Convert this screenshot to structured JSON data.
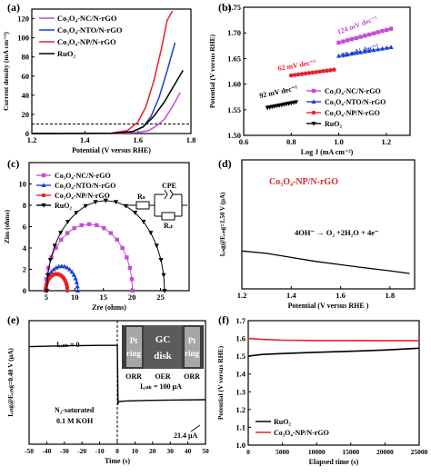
{
  "panels": [
    {
      "id": "a",
      "letter": "(a)",
      "type": "line",
      "xlabel": "Potential (V versus RHE)",
      "ylabel": "Current density (mA cm⁻²)",
      "xlim": [
        1.2,
        1.8
      ],
      "ylim": [
        0,
        130
      ],
      "xticks": [
        1.2,
        1.4,
        1.6,
        1.8
      ],
      "xtick_labels": [
        "1.2",
        "1.4",
        "1.6",
        "1.8"
      ],
      "yticks": [
        0,
        20,
        40,
        60,
        80,
        100,
        120
      ],
      "ytick_labels": [
        "0",
        "20",
        "40",
        "60",
        "80",
        "100",
        "120"
      ],
      "legend": "top-left",
      "hline": {
        "y": 10,
        "style": "dashed"
      },
      "series": [
        {
          "name": "Co₃O₄-NC/N-rGO",
          "color": "#c64bd4",
          "x": [
            1.2,
            1.5,
            1.6,
            1.64,
            1.67,
            1.7,
            1.73,
            1.76
          ],
          "y": [
            0,
            0.2,
            1,
            3,
            8,
            15,
            28,
            43
          ]
        },
        {
          "name": "Co₃O₄-NTO/N-rGO",
          "color": "#1a3fd6",
          "x": [
            1.2,
            1.5,
            1.58,
            1.62,
            1.65,
            1.68,
            1.71,
            1.74
          ],
          "y": [
            0,
            0.3,
            2,
            7,
            18,
            38,
            65,
            95
          ]
        },
        {
          "name": "Co₃O₄-NP/N-rGO",
          "color": "#e8202a",
          "x": [
            1.2,
            1.5,
            1.56,
            1.6,
            1.63,
            1.66,
            1.69,
            1.71,
            1.73
          ],
          "y": [
            0,
            0.5,
            3,
            12,
            28,
            55,
            90,
            118,
            128
          ]
        },
        {
          "name": "RuO₂",
          "color": "#000000",
          "x": [
            1.2,
            1.5,
            1.58,
            1.62,
            1.66,
            1.7,
            1.74,
            1.77
          ],
          "y": [
            0,
            0.3,
            2,
            7,
            18,
            33,
            52,
            66
          ]
        }
      ]
    },
    {
      "id": "b",
      "letter": "(b)",
      "type": "scatter",
      "xlabel": "Log J (mA cm⁻²)",
      "ylabel": "Potential (V versus RHE)",
      "xlim": [
        0.6,
        1.3
      ],
      "ylim": [
        1.5,
        1.75
      ],
      "xticks": [
        0.6,
        0.8,
        1.0,
        1.2
      ],
      "xtick_labels": [
        "0.6",
        "0.8",
        "1.0",
        "1.2"
      ],
      "yticks": [
        1.5,
        1.55,
        1.6,
        1.65,
        1.7,
        1.75
      ],
      "ytick_labels": [
        "1.50",
        "1.55",
        "1.60",
        "1.65",
        "1.70",
        "1.75"
      ],
      "legend": "bottom-right",
      "series": [
        {
          "name": "Co₃O₄-NC/N-rGO",
          "color": "#c64bd4",
          "x": [
            1.0,
            1.22
          ],
          "y": [
            1.681,
            1.708
          ],
          "slope_label": "124 mV dec⁻¹"
        },
        {
          "name": "Co₃O₄-NTO/N-rGO",
          "color": "#1a3fd6",
          "x": [
            1.0,
            1.22
          ],
          "y": [
            1.655,
            1.672
          ],
          "slope_label": "78 mV dec⁻¹"
        },
        {
          "name": "Co₃O₄-NP/N-rGO",
          "color": "#e8202a",
          "x": [
            0.8,
            0.98
          ],
          "y": [
            1.617,
            1.628
          ],
          "slope_label": "62 mV dec⁻¹"
        },
        {
          "name": "RuO₂",
          "color": "#000000",
          "x": [
            0.7,
            0.82
          ],
          "y": [
            1.554,
            1.565
          ],
          "slope_label": "92 mV dec⁻¹"
        }
      ]
    },
    {
      "id": "c",
      "letter": "(c)",
      "type": "scatter",
      "xlabel": "Zre (ohms)",
      "ylabel": "Zim (ohms)",
      "xlim": [
        2,
        30
      ],
      "ylim": [
        0,
        12
      ],
      "xticks": [
        5,
        10,
        15,
        20,
        25
      ],
      "xtick_labels": [
        "5",
        "10",
        "15",
        "20",
        "25"
      ],
      "yticks": [
        0,
        2,
        4,
        6,
        8,
        10
      ],
      "ytick_labels": [
        "0",
        "2",
        "4",
        "6",
        "8",
        "10"
      ],
      "legend": "top-left",
      "circuit_labels": {
        "rs": "Rₛ",
        "cpe": "CPE",
        "rct": "Rₑₜ"
      },
      "series": [
        {
          "name": "Co₃O₄-NC/N-rGO",
          "color": "#c64bd4",
          "center": 12.5,
          "radius": 7.6,
          "start": 4.9
        },
        {
          "name": "Co₃O₄-NTO/N-rGO",
          "color": "#1a3fd6",
          "center": 7.7,
          "radius": 2.8,
          "start": 4.9
        },
        {
          "name": "Co₃O₄-NP/N-rGO",
          "color": "#e8202a",
          "center": 6.8,
          "radius": 1.9,
          "start": 4.9
        },
        {
          "name": "RuO₂",
          "color": "#000000",
          "center": 15.4,
          "radius": 10.3,
          "start": 5.1
        }
      ]
    },
    {
      "id": "d",
      "letter": "(d)",
      "type": "line",
      "xlabel": "Potential (V versus RHE )",
      "ylabel": "Iᵣᵢₙg@Eᵣᵢₙg=1.50 V (μA)",
      "xlim": [
        1.2,
        1.9
      ],
      "ylim": [
        0,
        8
      ],
      "xticks": [
        1.2,
        1.4,
        1.6,
        1.8
      ],
      "xtick_labels": [
        "1.2",
        "1.4",
        "1.6",
        "1.8"
      ],
      "yticks": [],
      "ytick_labels": [],
      "series_label": "Co₃O₄-NP/N-rGO",
      "reaction": "4OH⁻ → O₂ +2H₂O + 4e⁻",
      "series": [
        {
          "name": "Co₃O₄-NP/N-rGO",
          "color": "#000000",
          "x": [
            1.2,
            1.3,
            1.4,
            1.5,
            1.6,
            1.7,
            1.8,
            1.88
          ],
          "y": [
            2.35,
            2.2,
            1.95,
            1.7,
            1.5,
            1.3,
            1.12,
            0.95
          ]
        }
      ]
    },
    {
      "id": "e",
      "letter": "(e)",
      "type": "line",
      "xlabel": "Time (s)",
      "ylabel": "Iᵣᵢₙg@Eᵣᵢₙg=0.40 V (μA)",
      "xlim": [
        -50,
        50
      ],
      "ylim": [
        0,
        10
      ],
      "xticks": [
        -50,
        -40,
        -30,
        -20,
        -10,
        0,
        10,
        20,
        30,
        40,
        50
      ],
      "xtick_labels": [
        "-50",
        "-40",
        "-30",
        "-20",
        "-10",
        "0",
        "10",
        "20",
        "30",
        "40",
        "50"
      ],
      "idisk_zero": "Iₑᵢₛₖ = 0",
      "idisk_100": "Iₑᵢₛₖ = 100 μA",
      "current_value": "21.4 μA",
      "conditions": [
        "N₂-saturated",
        "0.1 M KOH"
      ],
      "electrode": {
        "ring": [
          "Pt",
          "ring"
        ],
        "disk": [
          "GC",
          "disk"
        ],
        "labels": [
          "ORR",
          "OER",
          "ORR"
        ]
      },
      "series": [
        {
          "name": "ring current",
          "color": "#000000",
          "x": [
            -50,
            -30,
            -10,
            0,
            0.4,
            1,
            5,
            20,
            35,
            50
          ],
          "y": [
            7.9,
            7.96,
            8.0,
            8.0,
            3.3,
            3.45,
            3.5,
            3.55,
            3.58,
            3.6
          ]
        }
      ]
    },
    {
      "id": "f",
      "letter": "(f)",
      "type": "line",
      "xlabel": "Elapsed time (s)",
      "ylabel": "Potential (V versus RHE)",
      "xlim": [
        0,
        25000
      ],
      "ylim": [
        1.0,
        1.7
      ],
      "xticks": [
        0,
        5000,
        10000,
        15000,
        20000,
        25000
      ],
      "xtick_labels": [
        "0",
        "5000",
        "10000",
        "15000",
        "20000",
        "25000"
      ],
      "yticks": [
        1.0,
        1.1,
        1.2,
        1.3,
        1.4,
        1.5,
        1.6,
        1.7
      ],
      "ytick_labels": [
        "1.0",
        "1.1",
        "1.2",
        "1.3",
        "1.4",
        "1.5",
        "1.6",
        "1.7"
      ],
      "legend": "bottom-left",
      "series": [
        {
          "name": "RuO₂",
          "color": "#000000",
          "x": [
            0,
            2000,
            5000,
            10000,
            15000,
            20000,
            25000
          ],
          "y": [
            1.5,
            1.51,
            1.515,
            1.522,
            1.528,
            1.535,
            1.545
          ]
        },
        {
          "name": "Co₃O₄-NP/N-rGO",
          "color": "#e8202a",
          "x": [
            0,
            2000,
            5000,
            10000,
            15000,
            20000,
            25000
          ],
          "y": [
            1.6,
            1.595,
            1.59,
            1.588,
            1.588,
            1.587,
            1.587
          ]
        }
      ]
    }
  ]
}
